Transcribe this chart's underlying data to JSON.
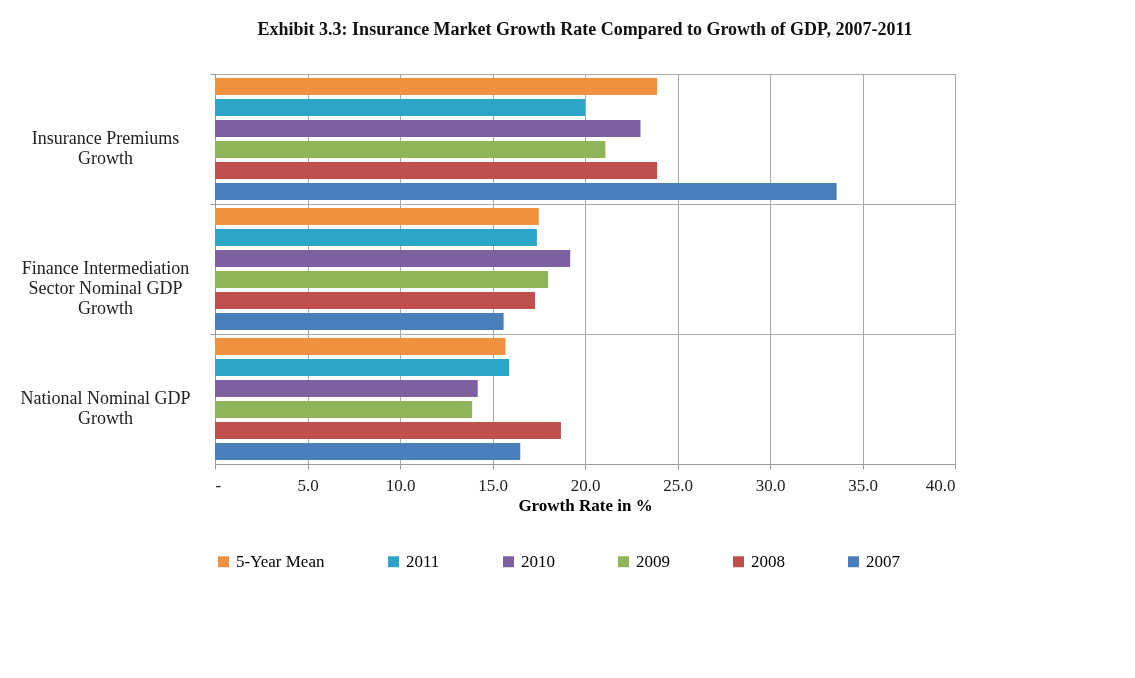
{
  "chart_data": {
    "type": "bar",
    "orientation": "horizontal",
    "title": "Exhibit 3.3: Insurance Market Growth Rate Compared to Growth of GDP, 2007-2011",
    "xlabel": "Growth Rate in %",
    "categories": [
      "Insurance Premiums Growth",
      "Finance Intermediation Sector Nominal GDP Growth",
      "National Nominal GDP Growth"
    ],
    "series": [
      {
        "name": "5-Year Mean",
        "color": "#f0913f",
        "values": [
          23.9,
          17.5,
          15.7
        ]
      },
      {
        "name": "2011",
        "color": "#2ca5c8",
        "values": [
          20.0,
          17.4,
          15.9
        ]
      },
      {
        "name": "2010",
        "color": "#7c60a0",
        "values": [
          23.0,
          19.2,
          14.2
        ]
      },
      {
        "name": "2009",
        "color": "#8fb459",
        "values": [
          21.1,
          18.0,
          13.9
        ]
      },
      {
        "name": "2008",
        "color": "#c0504d",
        "values": [
          23.9,
          17.3,
          18.7
        ]
      },
      {
        "name": "2007",
        "color": "#4a7ebb",
        "values": [
          33.6,
          15.6,
          16.5
        ]
      }
    ],
    "xlim": [
      0,
      40
    ],
    "xticks": [
      {
        "value": 0,
        "label": "-"
      },
      {
        "value": 5,
        "label": "5.0"
      },
      {
        "value": 10,
        "label": "10.0"
      },
      {
        "value": 15,
        "label": "15.0"
      },
      {
        "value": 20,
        "label": "20.0"
      },
      {
        "value": 25,
        "label": "25.0"
      },
      {
        "value": 30,
        "label": "30.0"
      },
      {
        "value": 35,
        "label": "35.0"
      },
      {
        "value": 40,
        "label": "40.0"
      }
    ],
    "grid": true,
    "legend": "bottom"
  }
}
